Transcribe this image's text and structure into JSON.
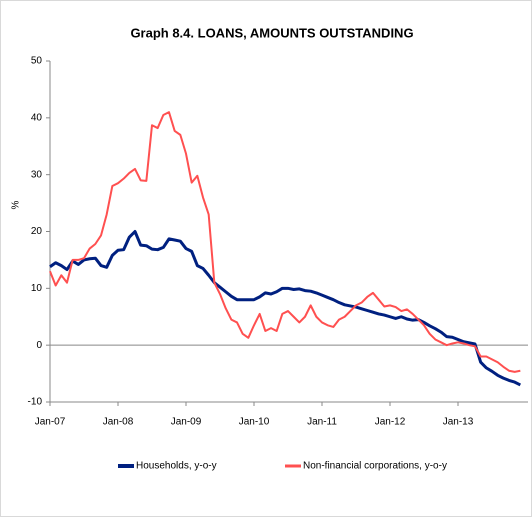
{
  "chart_data": {
    "type": "line",
    "title": "Graph 8.4. LOANS, AMOUNTS OUTSTANDING",
    "y_label": "%",
    "categories": [
      "Jan-07",
      null,
      null,
      null,
      null,
      null,
      null,
      null,
      null,
      null,
      null,
      null,
      "Jan-08",
      null,
      null,
      null,
      null,
      null,
      null,
      null,
      null,
      null,
      null,
      null,
      "Jan-09",
      null,
      null,
      null,
      null,
      null,
      null,
      null,
      null,
      null,
      null,
      null,
      "Jan-10",
      null,
      null,
      null,
      null,
      null,
      null,
      null,
      null,
      null,
      null,
      null,
      "Jan-11",
      null,
      null,
      null,
      null,
      null,
      null,
      null,
      null,
      null,
      null,
      null,
      "Jan-12",
      null,
      null,
      null,
      null,
      null,
      null,
      null,
      null,
      null,
      null,
      null,
      "Jan-13",
      null,
      null,
      null,
      null,
      null,
      null,
      null,
      null,
      null,
      null,
      null
    ],
    "series": [
      {
        "name": "Households, y-o-y",
        "color": "#002080",
        "width": 3,
        "values": [
          13.8,
          14.5,
          14,
          13.3,
          14.8,
          14.2,
          15,
          15.2,
          15.3,
          14,
          13.7,
          15.8,
          16.7,
          16.8,
          19,
          20,
          17.6,
          17.5,
          16.9,
          16.8,
          17.2,
          18.7,
          18.5,
          18.3,
          17,
          16.5,
          14,
          13.5,
          12.3,
          11,
          10.2,
          9.4,
          8.6,
          8,
          8,
          8,
          8,
          8.5,
          9.2,
          9,
          9.4,
          10,
          10,
          9.8,
          9.9,
          9.6,
          9.5,
          9.2,
          8.8,
          8.4,
          8,
          7.5,
          7.1,
          6.9,
          6.7,
          6.4,
          6.1,
          5.8,
          5.5,
          5.3,
          5,
          4.7,
          5,
          4.6,
          4.4,
          4.5,
          4,
          3.4,
          2.9,
          2.3,
          1.5,
          1.4,
          1,
          0.6,
          0.4,
          0.2,
          -3,
          -4,
          -4.6,
          -5.3,
          -5.8,
          -6.2,
          -6.5,
          -7
        ]
      },
      {
        "name": "Non-financial corporations, y-o-y",
        "color": "#ff5050",
        "width": 2,
        "values": [
          13,
          10.5,
          12.3,
          11,
          15,
          15,
          15.3,
          17,
          17.8,
          19.3,
          23,
          28,
          28.5,
          29.3,
          30.3,
          31,
          29,
          28.9,
          38.7,
          38.2,
          40.5,
          41,
          37.7,
          37,
          33.7,
          28.6,
          29.8,
          26,
          23,
          11,
          9,
          6.5,
          4.5,
          4,
          2,
          1.3,
          3.5,
          5.5,
          2.5,
          3,
          2.5,
          5.5,
          6,
          5,
          4,
          5,
          7,
          5,
          4,
          3.5,
          3.2,
          4.5,
          5,
          6,
          7,
          7.5,
          8.5,
          9.2,
          8,
          6.8,
          7,
          6.7,
          6,
          6.3,
          5.5,
          4.5,
          3.5,
          2,
          1,
          0.5,
          0,
          0.3,
          0.5,
          0.3,
          0,
          -0.2,
          -2,
          -2,
          -2.5,
          -3,
          -3.8,
          -4.5,
          -4.7,
          -4.5
        ]
      }
    ],
    "ylim": [
      -10,
      50
    ],
    "yticks": [
      -10,
      0,
      10,
      20,
      30,
      40,
      50
    ],
    "grid": false
  }
}
